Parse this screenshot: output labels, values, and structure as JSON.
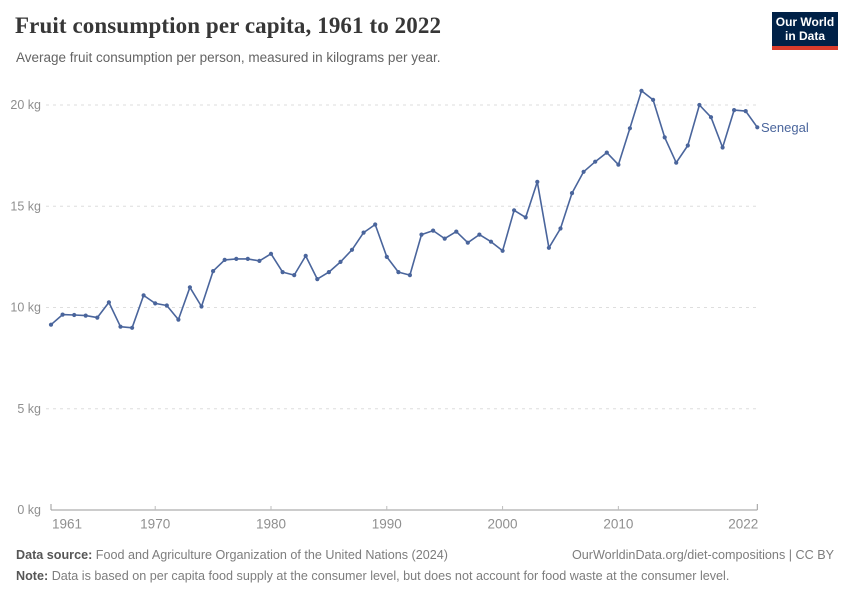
{
  "header": {
    "title": "Fruit consumption per capita, 1961 to 2022",
    "subtitle": "Average fruit consumption per person, measured in kilograms per year."
  },
  "logo": {
    "line1": "Our World",
    "line2": "in Data"
  },
  "entity_label": "Senegal",
  "footer": {
    "source_label": "Data source:",
    "source_text": "Food and Agriculture Organization of the United Nations (2024)",
    "right_text": "OurWorldinData.org/diet-compositions | CC BY",
    "note_label": "Note:",
    "note_text": "Data is based on per capita food supply at the consumer level, but does not account for food waste at the consumer level."
  },
  "colors": {
    "line": "#4a659c",
    "grid": "#dedede",
    "axis": "#9a9a9a",
    "tick_text": "#8f8f8f",
    "logo_bg": "#002147",
    "logo_stripe": "#D93C2C"
  },
  "chart_data": {
    "type": "line",
    "title": "Fruit consumption per capita, 1961 to 2022",
    "subtitle": "Average fruit consumption per person, measured in kilograms per year.",
    "unit": "kg",
    "xlabel": "",
    "ylabel": "kilograms per year",
    "xlim": [
      1961,
      2022
    ],
    "ylim": [
      0,
      20
    ],
    "grid": "horizontal-dashed",
    "legend_position": "end-of-line-label",
    "xticks": [
      1961,
      1970,
      1980,
      1990,
      2000,
      2010,
      2022
    ],
    "yticks": [
      {
        "v": 0,
        "label": "0 kg"
      },
      {
        "v": 5,
        "label": "5 kg"
      },
      {
        "v": 10,
        "label": "10 kg"
      },
      {
        "v": 15,
        "label": "15 kg"
      },
      {
        "v": 20,
        "label": "20 kg"
      }
    ],
    "series": [
      {
        "name": "Senegal",
        "x": [
          1961,
          1962,
          1963,
          1964,
          1965,
          1966,
          1967,
          1968,
          1969,
          1970,
          1971,
          1972,
          1973,
          1974,
          1975,
          1976,
          1977,
          1978,
          1979,
          1980,
          1981,
          1982,
          1983,
          1984,
          1985,
          1986,
          1987,
          1988,
          1989,
          1990,
          1991,
          1992,
          1993,
          1994,
          1995,
          1996,
          1997,
          1998,
          1999,
          2000,
          2001,
          2002,
          2003,
          2004,
          2005,
          2006,
          2007,
          2008,
          2009,
          2010,
          2011,
          2012,
          2013,
          2014,
          2015,
          2016,
          2017,
          2018,
          2019,
          2020,
          2021,
          2022
        ],
        "values": [
          9.15,
          9.65,
          9.63,
          9.6,
          9.5,
          10.25,
          9.05,
          9.0,
          10.6,
          10.2,
          10.1,
          9.4,
          11.0,
          10.05,
          11.8,
          12.35,
          12.4,
          12.4,
          12.3,
          12.65,
          11.75,
          11.6,
          12.55,
          11.4,
          11.75,
          12.25,
          12.85,
          13.7,
          14.1,
          12.5,
          11.75,
          11.6,
          13.6,
          13.8,
          13.4,
          13.75,
          13.2,
          13.6,
          13.25,
          12.8,
          14.8,
          14.45,
          16.2,
          12.95,
          13.9,
          15.65,
          16.7,
          17.2,
          17.65,
          17.05,
          18.85,
          20.7,
          20.25,
          18.4,
          17.15,
          18.0,
          20.0,
          19.4,
          17.9,
          19.75,
          19.7,
          18.9
        ]
      }
    ]
  }
}
